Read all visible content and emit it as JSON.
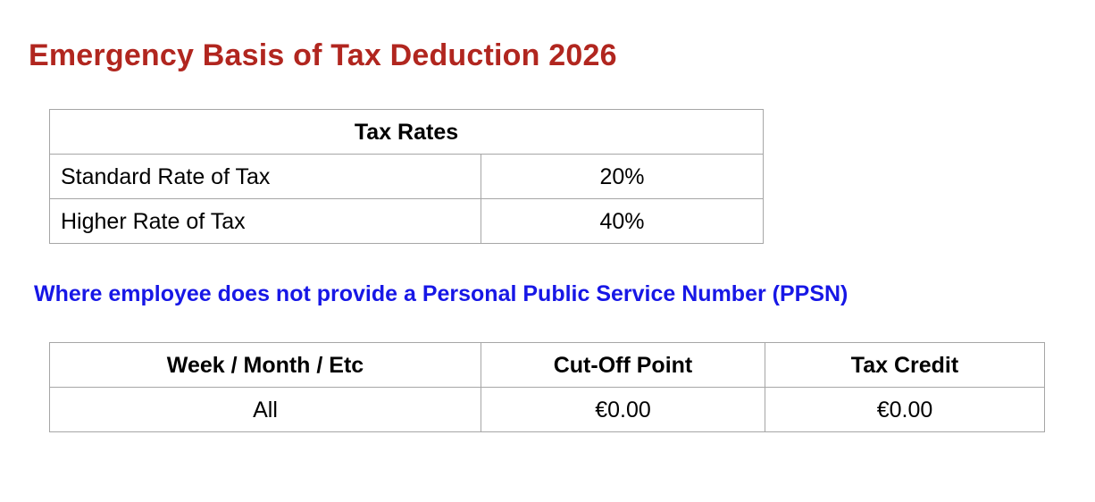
{
  "title": "Emergency Basis of Tax Deduction 2026",
  "colors": {
    "title": "#b1261f",
    "section_heading": "#1717e6",
    "table_border": "#a6a6a6"
  },
  "tax_rates": {
    "header": "Tax Rates",
    "rows": [
      {
        "label": "Standard Rate of Tax",
        "value": "20%"
      },
      {
        "label": "Higher Rate of Tax",
        "value": "40%"
      }
    ]
  },
  "no_ppsn": {
    "heading": "Where employee does not provide a Personal Public Service Number (PPSN)",
    "columns": [
      "Week / Month / Etc",
      "Cut-Off Point",
      "Tax Credit"
    ],
    "rows": [
      [
        "All",
        "€0.00",
        "€0.00"
      ]
    ]
  }
}
